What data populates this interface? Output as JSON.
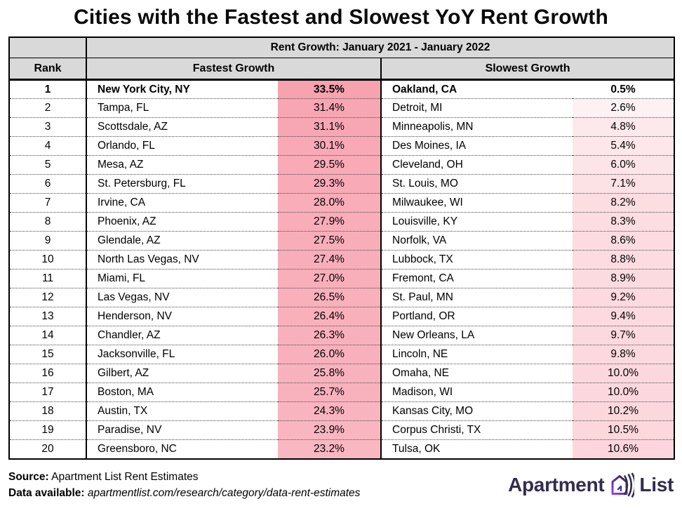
{
  "title": "Cities with the Fastest and Slowest YoY Rent Growth",
  "table": {
    "span_header": "Rent Growth: January 2021 - January 2022",
    "columns": {
      "rank": "Rank",
      "fastest": "Fastest Growth",
      "slowest": "Slowest Growth"
    },
    "rows": [
      {
        "rank": "1",
        "fastest_city": "New York City, NY",
        "fastest_pct": "33.5%",
        "slowest_city": "Oakland, CA",
        "slowest_pct": "0.5%"
      },
      {
        "rank": "2",
        "fastest_city": "Tampa, FL",
        "fastest_pct": "31.4%",
        "slowest_city": "Detroit, MI",
        "slowest_pct": "2.6%"
      },
      {
        "rank": "3",
        "fastest_city": "Scottsdale, AZ",
        "fastest_pct": "31.1%",
        "slowest_city": "Minneapolis, MN",
        "slowest_pct": "4.8%"
      },
      {
        "rank": "4",
        "fastest_city": "Orlando, FL",
        "fastest_pct": "30.1%",
        "slowest_city": "Des Moines, IA",
        "slowest_pct": "5.4%"
      },
      {
        "rank": "5",
        "fastest_city": "Mesa, AZ",
        "fastest_pct": "29.5%",
        "slowest_city": "Cleveland, OH",
        "slowest_pct": "6.0%"
      },
      {
        "rank": "6",
        "fastest_city": "St. Petersburg, FL",
        "fastest_pct": "29.3%",
        "slowest_city": "St. Louis, MO",
        "slowest_pct": "7.1%"
      },
      {
        "rank": "7",
        "fastest_city": "Irvine, CA",
        "fastest_pct": "28.0%",
        "slowest_city": "Milwaukee, WI",
        "slowest_pct": "8.2%"
      },
      {
        "rank": "8",
        "fastest_city": "Phoenix, AZ",
        "fastest_pct": "27.9%",
        "slowest_city": "Louisville, KY",
        "slowest_pct": "8.3%"
      },
      {
        "rank": "9",
        "fastest_city": "Glendale, AZ",
        "fastest_pct": "27.5%",
        "slowest_city": "Norfolk, VA",
        "slowest_pct": "8.6%"
      },
      {
        "rank": "10",
        "fastest_city": "North Las Vegas, NV",
        "fastest_pct": "27.4%",
        "slowest_city": "Lubbock, TX",
        "slowest_pct": "8.8%"
      },
      {
        "rank": "11",
        "fastest_city": "Miami, FL",
        "fastest_pct": "27.0%",
        "slowest_city": "Fremont, CA",
        "slowest_pct": "8.9%"
      },
      {
        "rank": "12",
        "fastest_city": "Las Vegas, NV",
        "fastest_pct": "26.5%",
        "slowest_city": "St. Paul, MN",
        "slowest_pct": "9.2%"
      },
      {
        "rank": "13",
        "fastest_city": "Henderson, NV",
        "fastest_pct": "26.4%",
        "slowest_city": "Portland, OR",
        "slowest_pct": "9.4%"
      },
      {
        "rank": "14",
        "fastest_city": "Chandler, AZ",
        "fastest_pct": "26.3%",
        "slowest_city": "New Orleans, LA",
        "slowest_pct": "9.7%"
      },
      {
        "rank": "15",
        "fastest_city": "Jacksonville, FL",
        "fastest_pct": "26.0%",
        "slowest_city": "Lincoln, NE",
        "slowest_pct": "9.8%"
      },
      {
        "rank": "16",
        "fastest_city": "Gilbert, AZ",
        "fastest_pct": "25.8%",
        "slowest_city": "Omaha, NE",
        "slowest_pct": "10.0%"
      },
      {
        "rank": "17",
        "fastest_city": "Boston, MA",
        "fastest_pct": "25.7%",
        "slowest_city": "Madison, WI",
        "slowest_pct": "10.0%"
      },
      {
        "rank": "18",
        "fastest_city": "Austin, TX",
        "fastest_pct": "24.3%",
        "slowest_city": "Kansas City, MO",
        "slowest_pct": "10.2%"
      },
      {
        "rank": "19",
        "fastest_city": "Paradise, NV",
        "fastest_pct": "23.9%",
        "slowest_city": "Corpus Christi, TX",
        "slowest_pct": "10.5%"
      },
      {
        "rank": "20",
        "fastest_city": "Greensboro, NC",
        "fastest_pct": "23.2%",
        "slowest_city": "Tulsa, OK",
        "slowest_pct": "10.6%"
      }
    ]
  },
  "footer": {
    "source_label": "Source:",
    "source_text": "Apartment List Rent Estimates",
    "data_label": "Data available:",
    "data_text": "apartmentlist.com/research/category/data-rent-estimates"
  },
  "logo": {
    "word1": "Apartment",
    "word2": "List"
  },
  "colors": {
    "header_bg": "#d9d9d9",
    "highlight_base": "#f7a2af",
    "scale_min": 0.5,
    "scale_max": 33.5,
    "logo_text": "#332c4e",
    "logo_purple": "#7c3aed"
  },
  "chart_data": {
    "type": "table",
    "title": "Cities with the Fastest and Slowest YoY Rent Growth",
    "subtitle": "Rent Growth: January 2021 - January 2022",
    "columns": [
      "Rank",
      "Fastest Growth City",
      "Fastest Growth %",
      "Slowest Growth City",
      "Slowest Growth %"
    ],
    "rows": [
      [
        1,
        "New York City, NY",
        33.5,
        "Oakland, CA",
        0.5
      ],
      [
        2,
        "Tampa, FL",
        31.4,
        "Detroit, MI",
        2.6
      ],
      [
        3,
        "Scottsdale, AZ",
        31.1,
        "Minneapolis, MN",
        4.8
      ],
      [
        4,
        "Orlando, FL",
        30.1,
        "Des Moines, IA",
        5.4
      ],
      [
        5,
        "Mesa, AZ",
        29.5,
        "Cleveland, OH",
        6.0
      ],
      [
        6,
        "St. Petersburg, FL",
        29.3,
        "St. Louis, MO",
        7.1
      ],
      [
        7,
        "Irvine, CA",
        28.0,
        "Milwaukee, WI",
        8.2
      ],
      [
        8,
        "Phoenix, AZ",
        27.9,
        "Louisville, KY",
        8.3
      ],
      [
        9,
        "Glendale, AZ",
        27.5,
        "Norfolk, VA",
        8.6
      ],
      [
        10,
        "North Las Vegas, NV",
        27.4,
        "Lubbock, TX",
        8.8
      ],
      [
        11,
        "Miami, FL",
        27.0,
        "Fremont, CA",
        8.9
      ],
      [
        12,
        "Las Vegas, NV",
        26.5,
        "St. Paul, MN",
        9.2
      ],
      [
        13,
        "Henderson, NV",
        26.4,
        "Portland, OR",
        9.4
      ],
      [
        14,
        "Chandler, AZ",
        26.3,
        "New Orleans, LA",
        9.7
      ],
      [
        15,
        "Jacksonville, FL",
        26.0,
        "Lincoln, NE",
        9.8
      ],
      [
        16,
        "Gilbert, AZ",
        25.8,
        "Omaha, NE",
        10.0
      ],
      [
        17,
        "Boston, MA",
        25.7,
        "Madison, WI",
        10.0
      ],
      [
        18,
        "Austin, TX",
        24.3,
        "Kansas City, MO",
        10.2
      ],
      [
        19,
        "Paradise, NV",
        23.9,
        "Corpus Christi, TX",
        10.5
      ],
      [
        20,
        "Greensboro, NC",
        23.2,
        "Tulsa, OK",
        10.6
      ]
    ],
    "notes": "Percent cells use a white-to-pink color scale proportional to value"
  }
}
